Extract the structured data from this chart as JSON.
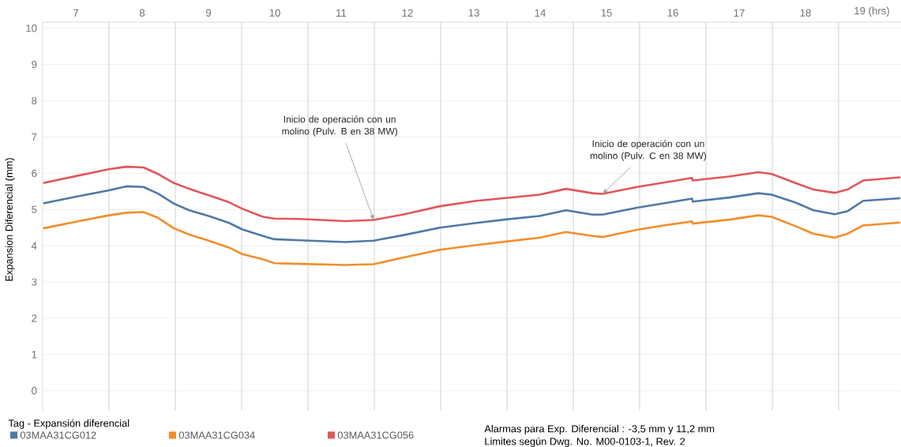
{
  "chart_data": {
    "type": "line",
    "ylabel": "Expansion Diferencial (mm)",
    "legend_title": "Tag - Expansión diferencial",
    "x": [
      7.01,
      7.55,
      8.0,
      8.26,
      8.52,
      8.74,
      8.98,
      9.21,
      9.54,
      9.81,
      10.01,
      10.32,
      10.49,
      10.88,
      11.56,
      11.99,
      12.43,
      12.99,
      13.54,
      14.01,
      14.49,
      14.89,
      15.29,
      15.44,
      15.96,
      16.36,
      16.79,
      16.8,
      17.35,
      17.79,
      17.99,
      18.35,
      18.62,
      18.94,
      19.13,
      19.37,
      19.93
    ],
    "series": [
      {
        "name": "03MAA31CG012",
        "color": "#4e79a7",
        "values": [
          5.17,
          5.37,
          5.53,
          5.64,
          5.62,
          5.44,
          5.16,
          4.98,
          4.8,
          4.63,
          4.45,
          4.27,
          4.18,
          4.15,
          4.1,
          4.14,
          4.29,
          4.5,
          4.63,
          4.73,
          4.82,
          4.98,
          4.86,
          4.86,
          5.05,
          5.17,
          5.3,
          5.22,
          5.33,
          5.45,
          5.41,
          5.19,
          4.98,
          4.87,
          4.95,
          5.24,
          5.31
        ]
      },
      {
        "name": "03MAA31CG034",
        "color": "#f28e2b",
        "values": [
          4.48,
          4.68,
          4.84,
          4.91,
          4.93,
          4.77,
          4.48,
          4.31,
          4.12,
          3.95,
          3.77,
          3.63,
          3.52,
          3.5,
          3.47,
          3.49,
          3.67,
          3.89,
          4.02,
          4.12,
          4.22,
          4.38,
          4.27,
          4.24,
          4.44,
          4.56,
          4.67,
          4.61,
          4.72,
          4.84,
          4.8,
          4.54,
          4.33,
          4.22,
          4.33,
          4.56,
          4.64
        ]
      },
      {
        "name": "03MAA31CG056",
        "color": "#e15759",
        "values": [
          5.73,
          5.94,
          6.11,
          6.18,
          6.16,
          5.98,
          5.73,
          5.57,
          5.37,
          5.2,
          5.02,
          4.8,
          4.75,
          4.74,
          4.68,
          4.71,
          4.86,
          5.09,
          5.24,
          5.32,
          5.41,
          5.57,
          5.45,
          5.43,
          5.62,
          5.74,
          5.87,
          5.8,
          5.91,
          6.03,
          5.98,
          5.73,
          5.55,
          5.46,
          5.55,
          5.8,
          5.89
        ]
      }
    ],
    "xlim": [
      7,
      19.94
    ],
    "xticks": [
      {
        "value": 7.5,
        "label": "7"
      },
      {
        "value": 8.5,
        "label": "8"
      },
      {
        "value": 9.5,
        "label": "9"
      },
      {
        "value": 10.5,
        "label": "10"
      },
      {
        "value": 11.5,
        "label": "11"
      },
      {
        "value": 12.5,
        "label": "12"
      },
      {
        "value": 13.5,
        "label": "13"
      },
      {
        "value": 14.5,
        "label": "14"
      },
      {
        "value": 15.5,
        "label": "15"
      },
      {
        "value": 16.5,
        "label": "16"
      },
      {
        "value": 17.5,
        "label": "17"
      },
      {
        "value": 18.5,
        "label": "18"
      },
      {
        "value": 19.5,
        "label": "19 (hrs)"
      },
      {
        "value": 8,
        "label": null
      },
      {
        "value": 9,
        "label": null
      },
      {
        "value": 10,
        "label": null
      },
      {
        "value": 11,
        "label": null
      },
      {
        "value": 12,
        "label": null
      },
      {
        "value": 13,
        "label": null
      },
      {
        "value": 14,
        "label": null
      },
      {
        "value": 15,
        "label": null
      },
      {
        "value": 16,
        "label": null
      },
      {
        "value": 17,
        "label": null
      },
      {
        "value": 18,
        "label": null
      },
      {
        "value": 19,
        "label": null
      }
    ],
    "ylim": [
      -0.55,
      10.17
    ],
    "yticks": [
      0,
      1,
      2,
      3,
      4,
      5,
      6,
      7,
      8,
      9,
      10
    ],
    "grid": true,
    "legend": "bottom left",
    "annotations": [
      {
        "text": "Inicio de operación con un molino (Pulv. B en 38 MW)",
        "x": 11.99,
        "y": 4.71
      },
      {
        "text": "Inicio de operación con un molino (Pulv. C en 38 MW)",
        "x": 15.44,
        "y": 5.43
      },
      "Alarmas para Exp. Diferencial : -3,5 mm  y  11,2 mm",
      "Limites según Dwg. No. M00-0103-1, Rev. 2"
    ]
  }
}
